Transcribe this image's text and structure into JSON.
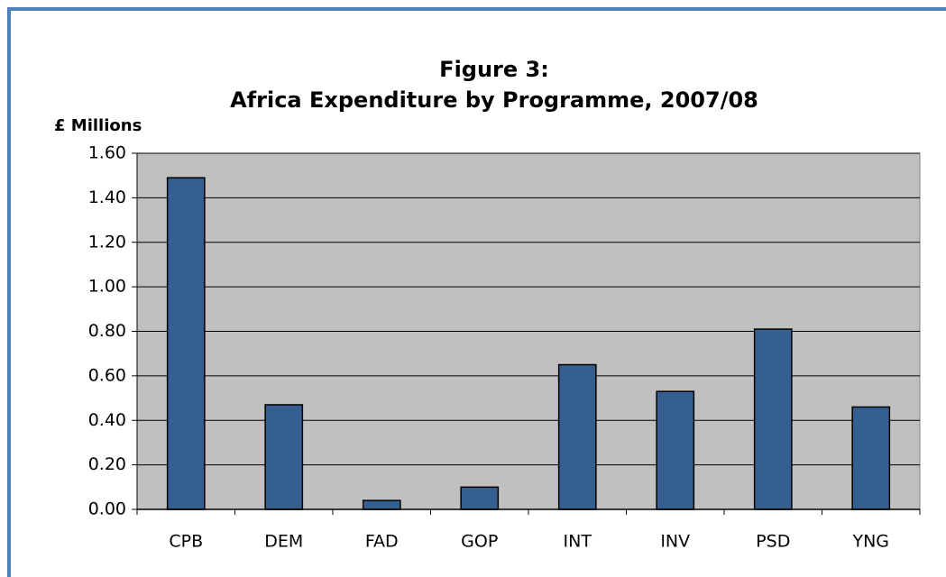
{
  "chart_data": {
    "type": "bar",
    "title": "Figure 3:",
    "subtitle": "Africa Expenditure by Programme, 2007/08",
    "y_label": "£ Millions",
    "categories": [
      "CPB",
      "DEM",
      "FAD",
      "GOP",
      "INT",
      "INV",
      "PSD",
      "YNG"
    ],
    "values": [
      1.49,
      0.47,
      0.04,
      0.1,
      0.65,
      0.53,
      0.81,
      0.46
    ],
    "color": "#365f91",
    "ylim": [
      0,
      1.6
    ],
    "yticks": [
      {
        "value": 0,
        "label": "0.00"
      },
      {
        "value": 0.2,
        "label": "0.20"
      },
      {
        "value": 0.4,
        "label": "0.40"
      },
      {
        "value": 0.6,
        "label": "0.60"
      },
      {
        "value": 0.8,
        "label": "0.80"
      },
      {
        "value": 1,
        "label": "1.00"
      },
      {
        "value": 1.2,
        "label": "1.20"
      },
      {
        "value": 1.4,
        "label": "1.40"
      },
      {
        "value": 1.6,
        "label": "1.60"
      }
    ],
    "grid": true
  }
}
